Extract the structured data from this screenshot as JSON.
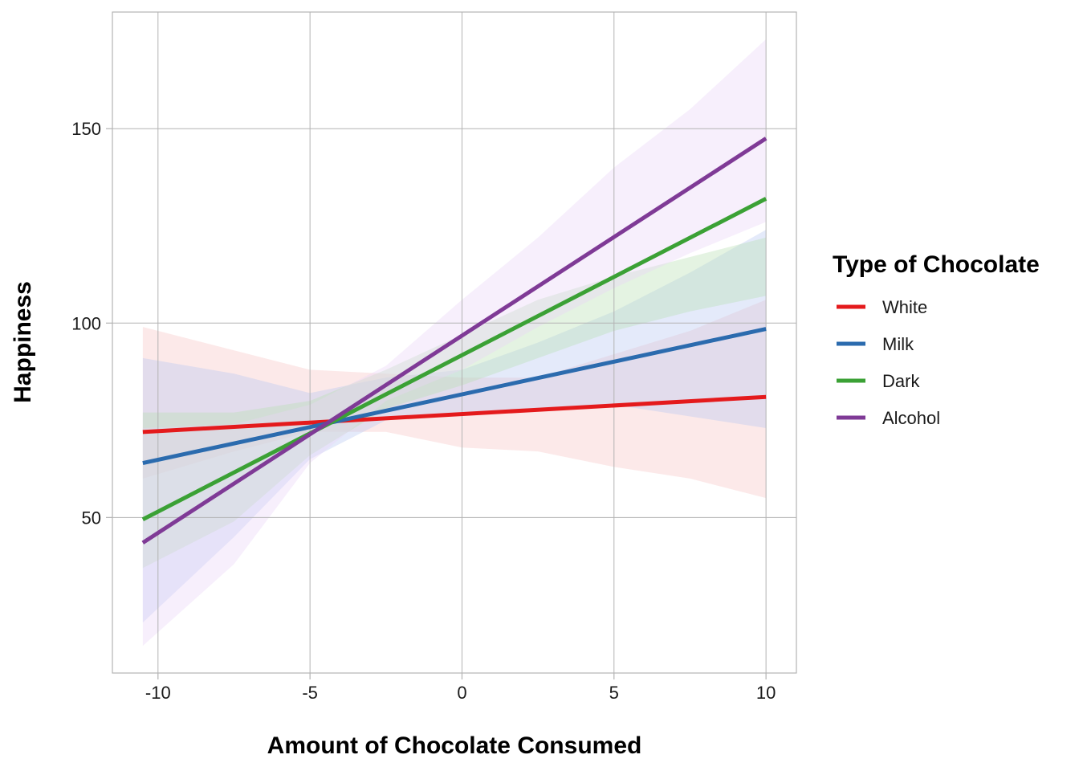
{
  "chart_data": {
    "type": "line",
    "xlabel": "Amount of Chocolate Consumed",
    "ylabel": "Happiness",
    "xlim": [
      -11.5,
      11
    ],
    "ylim": [
      10,
      180
    ],
    "xticks": [
      -10,
      -5,
      0,
      5,
      10
    ],
    "xtick_labels": [
      "-10",
      "-5",
      "0",
      "5",
      "10"
    ],
    "yticks": [
      50,
      100,
      150
    ],
    "ytick_labels": [
      "50",
      "100",
      "150"
    ],
    "grid": true,
    "legend": {
      "title": "Type of Chocolate",
      "position": "right"
    },
    "series": [
      {
        "name": "White",
        "color": "#E41A1C",
        "x": [
          -10.5,
          10
        ],
        "y": [
          72,
          81
        ],
        "band": {
          "x": [
            -10.5,
            -7.5,
            -5,
            -2.5,
            0,
            2.5,
            5,
            7.5,
            10
          ],
          "lower": [
            60,
            67,
            72,
            72,
            68,
            67,
            63,
            60,
            55
          ],
          "upper": [
            99,
            93,
            88,
            87,
            86,
            86,
            92,
            98,
            106
          ]
        }
      },
      {
        "name": "Milk",
        "color": "#2B6BAE",
        "x": [
          -10.5,
          10
        ],
        "y": [
          64,
          98.5
        ],
        "band": {
          "x": [
            -10.5,
            -7.5,
            -5,
            -2.5,
            0,
            2.5,
            5,
            7.5,
            10
          ],
          "lower": [
            23,
            45,
            65,
            75,
            77,
            78,
            79,
            76,
            73
          ],
          "upper": [
            91,
            87,
            82,
            86,
            88,
            95,
            103,
            113,
            124
          ]
        }
      },
      {
        "name": "Dark",
        "color": "#3BA135",
        "x": [
          -10.5,
          10
        ],
        "y": [
          49.5,
          132
        ],
        "band": {
          "x": [
            -10.5,
            -7.5,
            -5,
            -2.5,
            0,
            2.5,
            5,
            7.5,
            10
          ],
          "lower": [
            37,
            49,
            66,
            78,
            84,
            91,
            98,
            103,
            107
          ],
          "upper": [
            77,
            77,
            80,
            88,
            97,
            106,
            112,
            117,
            122
          ]
        }
      },
      {
        "name": "Alcohol",
        "color": "#7F3A96",
        "x": [
          -10.5,
          10
        ],
        "y": [
          43.5,
          147.5
        ],
        "band": {
          "x": [
            -10.5,
            -7.5,
            -5,
            -2.5,
            0,
            2.5,
            5,
            7.5,
            10
          ],
          "lower": [
            17,
            38,
            64,
            80,
            88,
            99,
            109,
            118,
            126
          ],
          "upper": [
            73,
            74,
            79,
            89,
            106,
            122,
            140,
            155,
            173
          ]
        }
      }
    ],
    "band_fills": {
      "White": "#f7c6c4",
      "Milk": "#b8c8f2",
      "Dark": "#b9dfb2",
      "Alcohol": "#e9d4f7"
    }
  }
}
